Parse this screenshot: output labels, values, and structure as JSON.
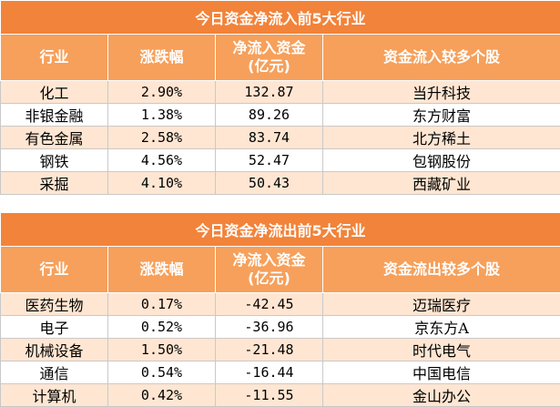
{
  "inflow": {
    "title": "今日资金净流入前5大行业",
    "headers": [
      "行业",
      "涨跌幅",
      "净流入资金\n(亿元)",
      "资金流入较多个股"
    ],
    "rows": [
      [
        "化工",
        "2.90%",
        "132.87",
        "当升科技"
      ],
      [
        "非银金融",
        "1.38%",
        "89.26",
        "东方财富"
      ],
      [
        "有色金属",
        "2.58%",
        "83.74",
        "北方稀土"
      ],
      [
        "钢铁",
        "4.56%",
        "52.47",
        "包钢股份"
      ],
      [
        "采掘",
        "4.10%",
        "50.43",
        "西藏矿业"
      ]
    ]
  },
  "outflow": {
    "title": "今日资金净流出前5大行业",
    "headers": [
      "行业",
      "涨跌幅",
      "净流入资金\n(亿元)",
      "资金流出较多个股"
    ],
    "rows": [
      [
        "医药生物",
        "0.17%",
        "-42.45",
        "迈瑞医疗"
      ],
      [
        "电子",
        "0.52%",
        "-36.96",
        "京东方A"
      ],
      [
        "机械设备",
        "1.50%",
        "-21.48",
        "时代电气"
      ],
      [
        "通信",
        "0.54%",
        "-16.44",
        "中国电信"
      ],
      [
        "计算机",
        "0.42%",
        "-11.55",
        "金山办公"
      ]
    ]
  },
  "colors": {
    "title_bg": "#f2833a",
    "header_bg": "#f6a05b",
    "row_odd": "#ffe6d2",
    "row_even": "#ffffff"
  }
}
